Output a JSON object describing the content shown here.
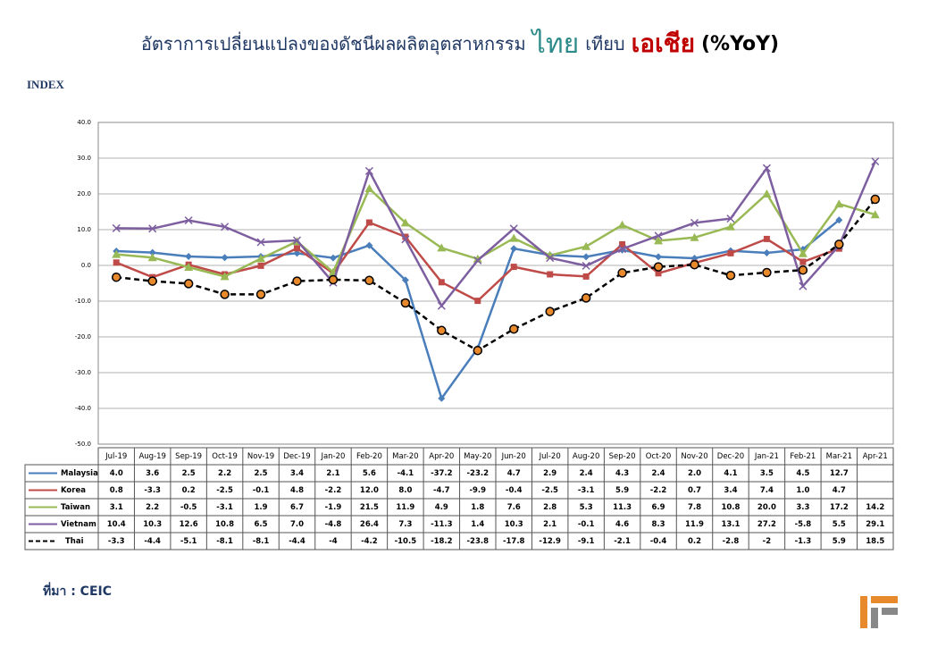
{
  "chart_data": {
    "type": "line",
    "title": [
      "อัตราการเปลี่ยนแปลงของดัชนีผลผลิตอุตสาหกรรม",
      "ไทย",
      "เทียบ",
      "เอเชีย",
      "(%YoY)"
    ],
    "y_label": "INDEX",
    "source": "ที่มา : CEIC",
    "categories": [
      "Jul-19",
      "Aug-19",
      "Sep-19",
      "Oct-19",
      "Nov-19",
      "Dec-19",
      "Jan-20",
      "Feb-20",
      "Mar-20",
      "Apr-20",
      "May-20",
      "Jun-20",
      "Jul-20",
      "Aug-20",
      "Sep-20",
      "Oct-20",
      "Nov-20",
      "Dec-20",
      "Jan-21",
      "Feb-21",
      "Mar-21",
      "Apr-21"
    ],
    "ylim": [
      -50,
      40
    ],
    "yticks": [
      {
        "value": 40,
        "label": "40.0"
      },
      {
        "value": 30,
        "label": "30.0"
      },
      {
        "value": 20,
        "label": "20.0"
      },
      {
        "value": 10,
        "label": "10.0"
      },
      {
        "value": 0,
        "label": "0.0"
      },
      {
        "value": -10,
        "label": "-10.0"
      },
      {
        "value": -20,
        "label": "-20.0"
      },
      {
        "value": -30,
        "label": "-30.0"
      },
      {
        "value": -40,
        "label": "-40.0"
      },
      {
        "value": -50,
        "label": "-50.0"
      }
    ],
    "grid": true,
    "series": [
      {
        "name": "Malaysia",
        "color": "#4a7ebb",
        "marker": "diamond",
        "values": [
          4.0,
          3.6,
          2.5,
          2.2,
          2.5,
          3.4,
          2.1,
          5.6,
          -4.1,
          -37.2,
          -23.2,
          4.7,
          2.9,
          2.4,
          4.3,
          2.4,
          2.0,
          4.1,
          3.5,
          4.5,
          12.7,
          null
        ],
        "value_labels": [
          "4.0",
          "3.6",
          "2.5",
          "2.2",
          "2.5",
          "3.4",
          "2.1",
          "5.6",
          "-4.1",
          "-37.2",
          "-23.2",
          "4.7",
          "2.9",
          "2.4",
          "4.3",
          "2.4",
          "2.0",
          "4.1",
          "3.5",
          "4.5",
          "12.7",
          null
        ]
      },
      {
        "name": "Korea",
        "color": "#be4b48",
        "marker": "square",
        "values": [
          0.8,
          -3.3,
          0.2,
          -2.5,
          -0.1,
          4.8,
          -2.2,
          12.0,
          8.0,
          -4.7,
          -9.9,
          -0.4,
          -2.5,
          -3.1,
          5.9,
          -2.2,
          0.7,
          3.4,
          7.4,
          1.0,
          4.7,
          null
        ],
        "value_labels": [
          "0.8",
          "-3.3",
          "0.2",
          "-2.5",
          "-0.1",
          "4.8",
          "-2.2",
          "12.0",
          "8.0",
          "-4.7",
          "-9.9",
          "-0.4",
          "-2.5",
          "-3.1",
          "5.9",
          "-2.2",
          "0.7",
          "3.4",
          "7.4",
          "1.0",
          "4.7",
          null
        ]
      },
      {
        "name": "Taiwan",
        "color": "#98b954",
        "marker": "triangle",
        "values": [
          3.1,
          2.2,
          -0.5,
          -3.1,
          1.9,
          6.7,
          -1.9,
          21.5,
          11.9,
          4.9,
          1.8,
          7.6,
          2.8,
          5.3,
          11.3,
          6.9,
          7.8,
          10.8,
          20.0,
          3.3,
          17.2,
          14.2
        ],
        "value_labels": [
          "3.1",
          "2.2",
          "-0.5",
          "-3.1",
          "1.9",
          "6.7",
          "-1.9",
          "21.5",
          "11.9",
          "4.9",
          "1.8",
          "7.6",
          "2.8",
          "5.3",
          "11.3",
          "6.9",
          "7.8",
          "10.8",
          "20.0",
          "3.3",
          "17.2",
          "14.2"
        ]
      },
      {
        "name": "Vietnam",
        "color": "#7d5fa0",
        "marker": "x",
        "values": [
          10.4,
          10.3,
          12.6,
          10.8,
          6.5,
          7.0,
          -4.8,
          26.4,
          7.3,
          -11.3,
          1.4,
          10.3,
          2.1,
          -0.1,
          4.6,
          8.3,
          11.9,
          13.1,
          27.2,
          -5.8,
          5.5,
          29.1
        ],
        "value_labels": [
          "10.4",
          "10.3",
          "12.6",
          "10.8",
          "6.5",
          "7.0",
          "-4.8",
          "26.4",
          "7.3",
          "-11.3",
          "1.4",
          "10.3",
          "2.1",
          "-0.1",
          "4.6",
          "8.3",
          "11.9",
          "13.1",
          "27.2",
          "-5.8",
          "5.5",
          "29.1"
        ]
      },
      {
        "name": "Thai",
        "color": "#000000",
        "marker": "circle",
        "marker_color": "#e8892c",
        "dash": true,
        "values": [
          -3.3,
          -4.4,
          -5.1,
          -8.1,
          -8.1,
          -4.4,
          -4,
          -4.2,
          -10.5,
          -18.2,
          -23.8,
          -17.8,
          -12.9,
          -9.1,
          -2.1,
          -0.4,
          0.2,
          -2.8,
          -2,
          -1.3,
          5.9,
          18.5
        ],
        "value_labels": [
          "-3.3",
          "-4.4",
          "-5.1",
          "-8.1",
          "-8.1",
          "-4.4",
          "-4",
          "-4.2",
          "-10.5",
          "-18.2",
          "-23.8",
          "-17.8",
          "-12.9",
          "-9.1",
          "-2.1",
          "-0.4",
          "0.2",
          "-2.8",
          "-2",
          "-1.3",
          "5.9",
          "18.5"
        ]
      }
    ]
  }
}
